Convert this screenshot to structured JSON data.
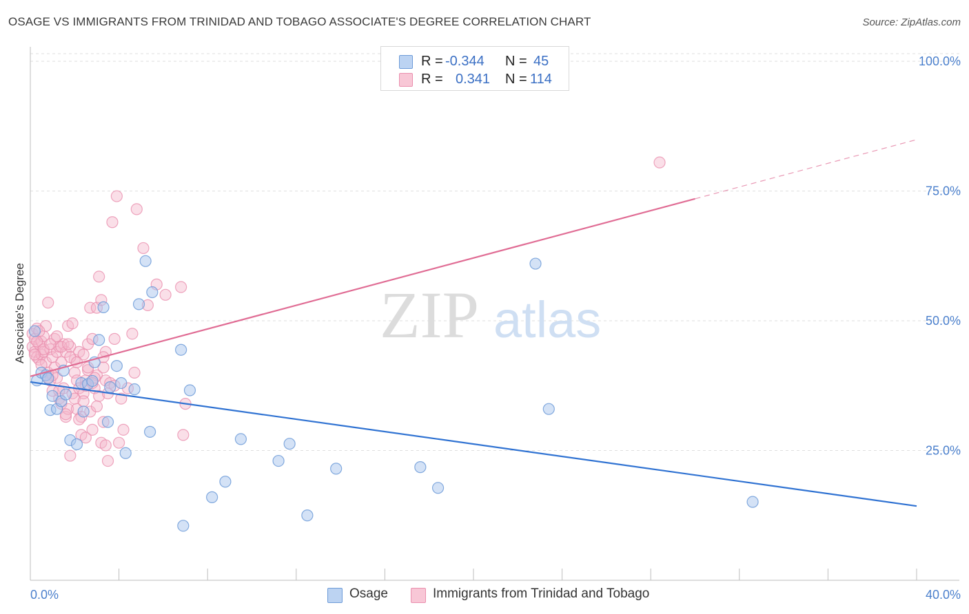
{
  "header": {
    "title": "OSAGE VS IMMIGRANTS FROM TRINIDAD AND TOBAGO ASSOCIATE'S DEGREE CORRELATION CHART",
    "source": "Source: ZipAtlas.com"
  },
  "legend": {
    "rows": [
      {
        "r_label": "R =",
        "r_value": "-0.344",
        "n_label": "N =",
        "n_value": "45"
      },
      {
        "r_label": "R =",
        "r_value": "0.341",
        "n_label": "N =",
        "n_value": "114"
      }
    ]
  },
  "bottom_legend": {
    "items": [
      "Osage",
      "Immigrants from Trinidad and Tobago"
    ]
  },
  "watermark": {
    "zip": "ZIP",
    "atlas": "atlas"
  },
  "colors": {
    "osage_fill": "#a9c6ee",
    "osage_stroke": "#6d9bd8",
    "osage_line": "#2f72d2",
    "trinidad_fill": "#f5b7cb",
    "trinidad_stroke": "#ea8fae",
    "trinidad_line": "#e06c94",
    "tick_text": "#4a7fcc",
    "grid": "#dedede"
  },
  "chart_data": {
    "type": "scatter",
    "title": "OSAGE VS IMMIGRANTS FROM TRINIDAD AND TOBAGO ASSOCIATE'S DEGREE CORRELATION CHART",
    "xlabel": "",
    "ylabel": "Associate's Degree",
    "xlim": [
      0,
      40
    ],
    "ylim": [
      0,
      105
    ],
    "x_tick_labels": [
      "0.0%",
      "40.0%"
    ],
    "y_ticks": [
      25,
      50,
      75,
      100
    ],
    "y_tick_labels": [
      "25.0%",
      "50.0%",
      "75.0%",
      "100.0%"
    ],
    "grid": "horizontal dashed",
    "legend_position": "top-center",
    "series": [
      {
        "name": "Osage",
        "R": -0.344,
        "N": 45,
        "trend": {
          "x0": 0,
          "y0": 38.2,
          "x1": 40,
          "y1": 14.3
        },
        "points": [
          [
            0.2,
            48.0
          ],
          [
            0.3,
            38.5
          ],
          [
            0.5,
            40.0
          ],
          [
            0.7,
            39.5
          ],
          [
            0.9,
            32.8
          ],
          [
            1.0,
            35.5
          ],
          [
            1.2,
            33.0
          ],
          [
            1.4,
            34.5
          ],
          [
            1.6,
            35.8
          ],
          [
            1.8,
            27.0
          ],
          [
            2.1,
            26.2
          ],
          [
            2.3,
            38.0
          ],
          [
            2.4,
            32.5
          ],
          [
            2.6,
            37.8
          ],
          [
            2.9,
            42.0
          ],
          [
            3.1,
            46.3
          ],
          [
            3.3,
            52.6
          ],
          [
            3.5,
            30.5
          ],
          [
            3.9,
            41.3
          ],
          [
            4.1,
            38.0
          ],
          [
            4.3,
            24.5
          ],
          [
            4.7,
            36.8
          ],
          [
            4.9,
            53.2
          ],
          [
            5.2,
            61.5
          ],
          [
            5.4,
            28.6
          ],
          [
            5.5,
            55.5
          ],
          [
            6.8,
            44.4
          ],
          [
            6.9,
            10.5
          ],
          [
            7.2,
            36.6
          ],
          [
            8.2,
            16.0
          ],
          [
            8.8,
            19.0
          ],
          [
            9.5,
            27.2
          ],
          [
            11.2,
            23.0
          ],
          [
            11.7,
            26.3
          ],
          [
            12.5,
            12.5
          ],
          [
            13.8,
            21.5
          ],
          [
            17.6,
            21.8
          ],
          [
            18.4,
            17.8
          ],
          [
            22.8,
            61.0
          ],
          [
            23.4,
            33.0
          ],
          [
            32.6,
            15.1
          ],
          [
            0.8,
            38.9
          ],
          [
            1.5,
            40.4
          ],
          [
            2.8,
            38.4
          ],
          [
            3.6,
            37.2
          ]
        ]
      },
      {
        "name": "Immigrants from Trinidad and Tobago",
        "R": 0.341,
        "N": 114,
        "trend": {
          "x0": 0,
          "y0": 39.3,
          "x1": 30,
          "y1": 73.5
        },
        "trend_dashed": {
          "x0": 30,
          "y0": 73.5,
          "x1": 40,
          "y1": 84.9
        },
        "points": [
          [
            0.1,
            47.5
          ],
          [
            0.1,
            45.0
          ],
          [
            0.2,
            44.0
          ],
          [
            0.2,
            46.5
          ],
          [
            0.3,
            43.0
          ],
          [
            0.3,
            48.5
          ],
          [
            0.4,
            42.5
          ],
          [
            0.4,
            45.5
          ],
          [
            0.5,
            46.0
          ],
          [
            0.5,
            43.5
          ],
          [
            0.6,
            44.0
          ],
          [
            0.6,
            47.0
          ],
          [
            0.7,
            42.0
          ],
          [
            0.7,
            49.0
          ],
          [
            0.8,
            53.5
          ],
          [
            0.8,
            40.0
          ],
          [
            0.9,
            44.5
          ],
          [
            0.9,
            38.5
          ],
          [
            1.0,
            36.5
          ],
          [
            1.0,
            43.0
          ],
          [
            1.1,
            46.5
          ],
          [
            1.1,
            41.0
          ],
          [
            1.2,
            44.0
          ],
          [
            1.2,
            39.0
          ],
          [
            1.3,
            35.0
          ],
          [
            1.3,
            45.0
          ],
          [
            1.4,
            34.0
          ],
          [
            1.4,
            42.0
          ],
          [
            1.5,
            45.5
          ],
          [
            1.5,
            37.0
          ],
          [
            1.6,
            31.5
          ],
          [
            1.6,
            44.0
          ],
          [
            1.7,
            49.0
          ],
          [
            1.7,
            33.0
          ],
          [
            1.8,
            45.0
          ],
          [
            1.8,
            24.0
          ],
          [
            1.9,
            49.5
          ],
          [
            1.9,
            36.0
          ],
          [
            2.0,
            40.0
          ],
          [
            2.0,
            42.5
          ],
          [
            2.1,
            33.0
          ],
          [
            2.1,
            38.5
          ],
          [
            2.2,
            37.0
          ],
          [
            2.2,
            44.0
          ],
          [
            2.3,
            28.0
          ],
          [
            2.3,
            31.5
          ],
          [
            2.4,
            36.0
          ],
          [
            2.4,
            43.5
          ],
          [
            2.5,
            27.5
          ],
          [
            2.5,
            38.5
          ],
          [
            2.6,
            40.5
          ],
          [
            2.6,
            45.5
          ],
          [
            2.7,
            52.5
          ],
          [
            2.7,
            32.5
          ],
          [
            2.8,
            46.5
          ],
          [
            2.8,
            29.0
          ],
          [
            2.9,
            37.0
          ],
          [
            3.0,
            52.5
          ],
          [
            3.0,
            39.5
          ],
          [
            3.1,
            58.5
          ],
          [
            3.1,
            35.5
          ],
          [
            3.2,
            54.0
          ],
          [
            3.2,
            26.5
          ],
          [
            3.3,
            41.0
          ],
          [
            3.3,
            30.5
          ],
          [
            3.4,
            38.5
          ],
          [
            3.4,
            26.0
          ],
          [
            3.5,
            23.0
          ],
          [
            3.5,
            36.0
          ],
          [
            3.6,
            38.0
          ],
          [
            3.7,
            69.0
          ],
          [
            3.8,
            46.5
          ],
          [
            3.8,
            37.5
          ],
          [
            3.9,
            74.0
          ],
          [
            4.0,
            26.5
          ],
          [
            4.1,
            35.0
          ],
          [
            4.2,
            29.0
          ],
          [
            4.4,
            37.0
          ],
          [
            4.6,
            47.5
          ],
          [
            4.7,
            40.0
          ],
          [
            4.8,
            71.5
          ],
          [
            5.1,
            64.0
          ],
          [
            5.3,
            53.0
          ],
          [
            5.7,
            57.0
          ],
          [
            6.1,
            55.0
          ],
          [
            6.8,
            56.5
          ],
          [
            6.9,
            28.0
          ],
          [
            7.0,
            34.0
          ],
          [
            28.4,
            80.5
          ],
          [
            0.3,
            46.0
          ],
          [
            0.6,
            44.5
          ],
          [
            1.0,
            39.5
          ],
          [
            1.4,
            45.0
          ],
          [
            1.8,
            43.0
          ],
          [
            2.2,
            31.0
          ],
          [
            2.6,
            41.0
          ],
          [
            3.0,
            33.5
          ],
          [
            3.4,
            44.0
          ],
          [
            0.2,
            43.5
          ],
          [
            0.5,
            41.5
          ],
          [
            0.9,
            45.5
          ],
          [
            1.3,
            36.5
          ],
          [
            1.7,
            45.5
          ],
          [
            2.1,
            42.0
          ],
          [
            2.5,
            37.5
          ],
          [
            2.9,
            39.0
          ],
          [
            3.3,
            43.0
          ],
          [
            0.4,
            48.0
          ],
          [
            0.8,
            39.0
          ],
          [
            1.2,
            47.0
          ],
          [
            1.6,
            32.0
          ],
          [
            2.0,
            35.0
          ],
          [
            2.4,
            34.5
          ],
          [
            2.8,
            38.0
          ]
        ]
      }
    ]
  }
}
